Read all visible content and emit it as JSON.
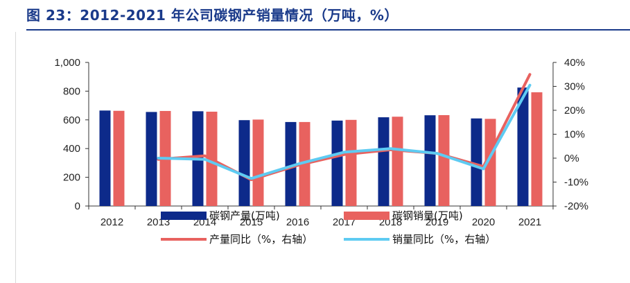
{
  "title": "图 23：2012-2021 年公司碳钢产销量情况（万吨，%）",
  "colors": {
    "title": "#1a3a8a",
    "production_bar": "#0d2a8a",
    "sales_bar": "#e8625f",
    "production_yoy_line": "#e8625f",
    "sales_yoy_line": "#5ecbf2",
    "axis": "#333333"
  },
  "chart_data": {
    "type": "bar",
    "categories": [
      "2012",
      "2013",
      "2014",
      "2015",
      "2016",
      "2017",
      "2018",
      "2019",
      "2020",
      "2021"
    ],
    "left_axis": {
      "ylim": [
        0,
        1000
      ],
      "ticks": [
        "0",
        "200",
        "400",
        "600",
        "800",
        "1,000"
      ],
      "tick_values": [
        0,
        200,
        400,
        600,
        800,
        1000
      ]
    },
    "right_axis": {
      "ylim": [
        -20,
        40
      ],
      "ticks": [
        "-20%",
        "-10%",
        "0%",
        "10%",
        "20%",
        "30%",
        "40%"
      ],
      "tick_values": [
        -20,
        -10,
        0,
        10,
        20,
        30,
        40
      ]
    },
    "series": [
      {
        "name": "碳钢产量(万吨)",
        "type": "bar",
        "axis": "left",
        "values": [
          665,
          655,
          660,
          598,
          585,
          595,
          618,
          632,
          610,
          825
        ]
      },
      {
        "name": "碳钢销量(万吨)",
        "type": "bar",
        "axis": "left",
        "values": [
          663,
          662,
          657,
          602,
          585,
          600,
          622,
          633,
          607,
          792
        ]
      },
      {
        "name": "产量同比（%，右轴）",
        "type": "line",
        "axis": "right",
        "values": [
          null,
          -0.5,
          1.0,
          -9.0,
          -3.0,
          1.5,
          3.5,
          2.0,
          -3.5,
          35.0
        ]
      },
      {
        "name": "销量同比（%，右轴）",
        "type": "line",
        "axis": "right",
        "values": [
          null,
          0.0,
          -0.5,
          -8.5,
          -2.5,
          2.5,
          4.0,
          2.0,
          -4.5,
          30.5
        ]
      }
    ],
    "legend_position": "bottom"
  }
}
